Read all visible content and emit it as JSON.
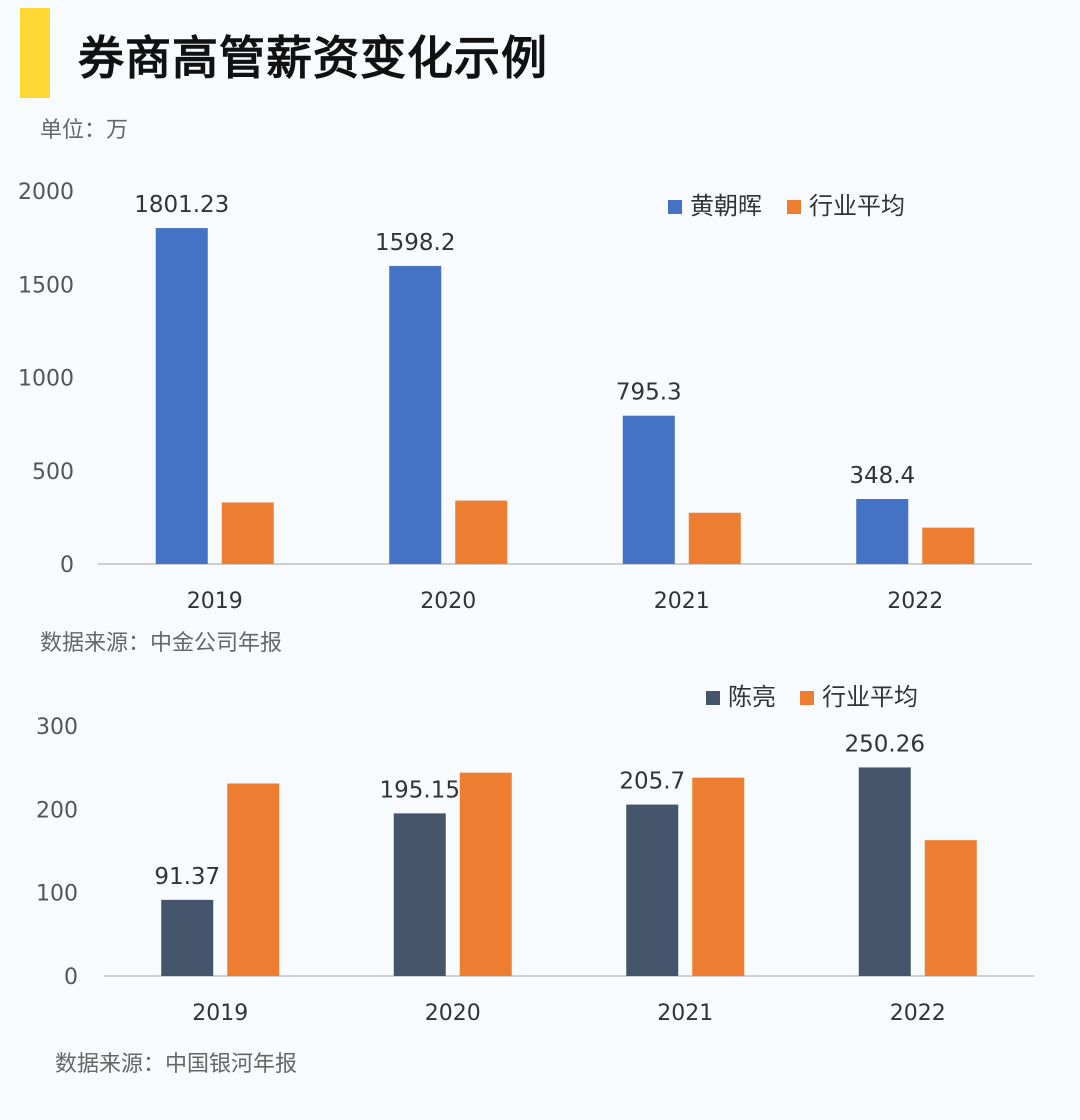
{
  "header": {
    "title": "券商高管薪资变化示例",
    "unit": "单位：万"
  },
  "colors": {
    "blue": "#4472c4",
    "orange": "#ed7d31",
    "navy": "#44546a",
    "axis": "#cfcfcf",
    "tick_text": "#555555",
    "label_text": "#333333"
  },
  "chart_data": [
    {
      "type": "bar",
      "categories": [
        "2019",
        "2020",
        "2021",
        "2022"
      ],
      "series": [
        {
          "name": "黄朝晖",
          "values": [
            1801.23,
            1598.2,
            795.3,
            348.4
          ],
          "labels": [
            "1801.23",
            "1598.2",
            "795.3",
            "348.4"
          ]
        },
        {
          "name": "行业平均",
          "values": [
            330,
            340,
            275,
            195
          ],
          "labels": [
            "",
            "",
            "",
            ""
          ]
        }
      ],
      "yticks": [
        "0",
        "500",
        "1000",
        "1500",
        "2000"
      ],
      "ylim": [
        0,
        2000
      ],
      "legend": "top-right",
      "source": "数据来源：中金公司年报"
    },
    {
      "type": "bar",
      "categories": [
        "2019",
        "2020",
        "2021",
        "2022"
      ],
      "series": [
        {
          "name": "陈亮",
          "values": [
            91.37,
            195.15,
            205.7,
            250.26
          ],
          "labels": [
            "91.37",
            "195.15",
            "205.7",
            "250.26"
          ]
        },
        {
          "name": "行业平均",
          "values": [
            231,
            244,
            238,
            163
          ],
          "labels": [
            "",
            "",
            "",
            ""
          ]
        }
      ],
      "yticks": [
        "0",
        "100",
        "200",
        "300"
      ],
      "ylim": [
        0,
        300
      ],
      "legend": "top-right",
      "source": "数据来源：中国银河年报"
    }
  ]
}
